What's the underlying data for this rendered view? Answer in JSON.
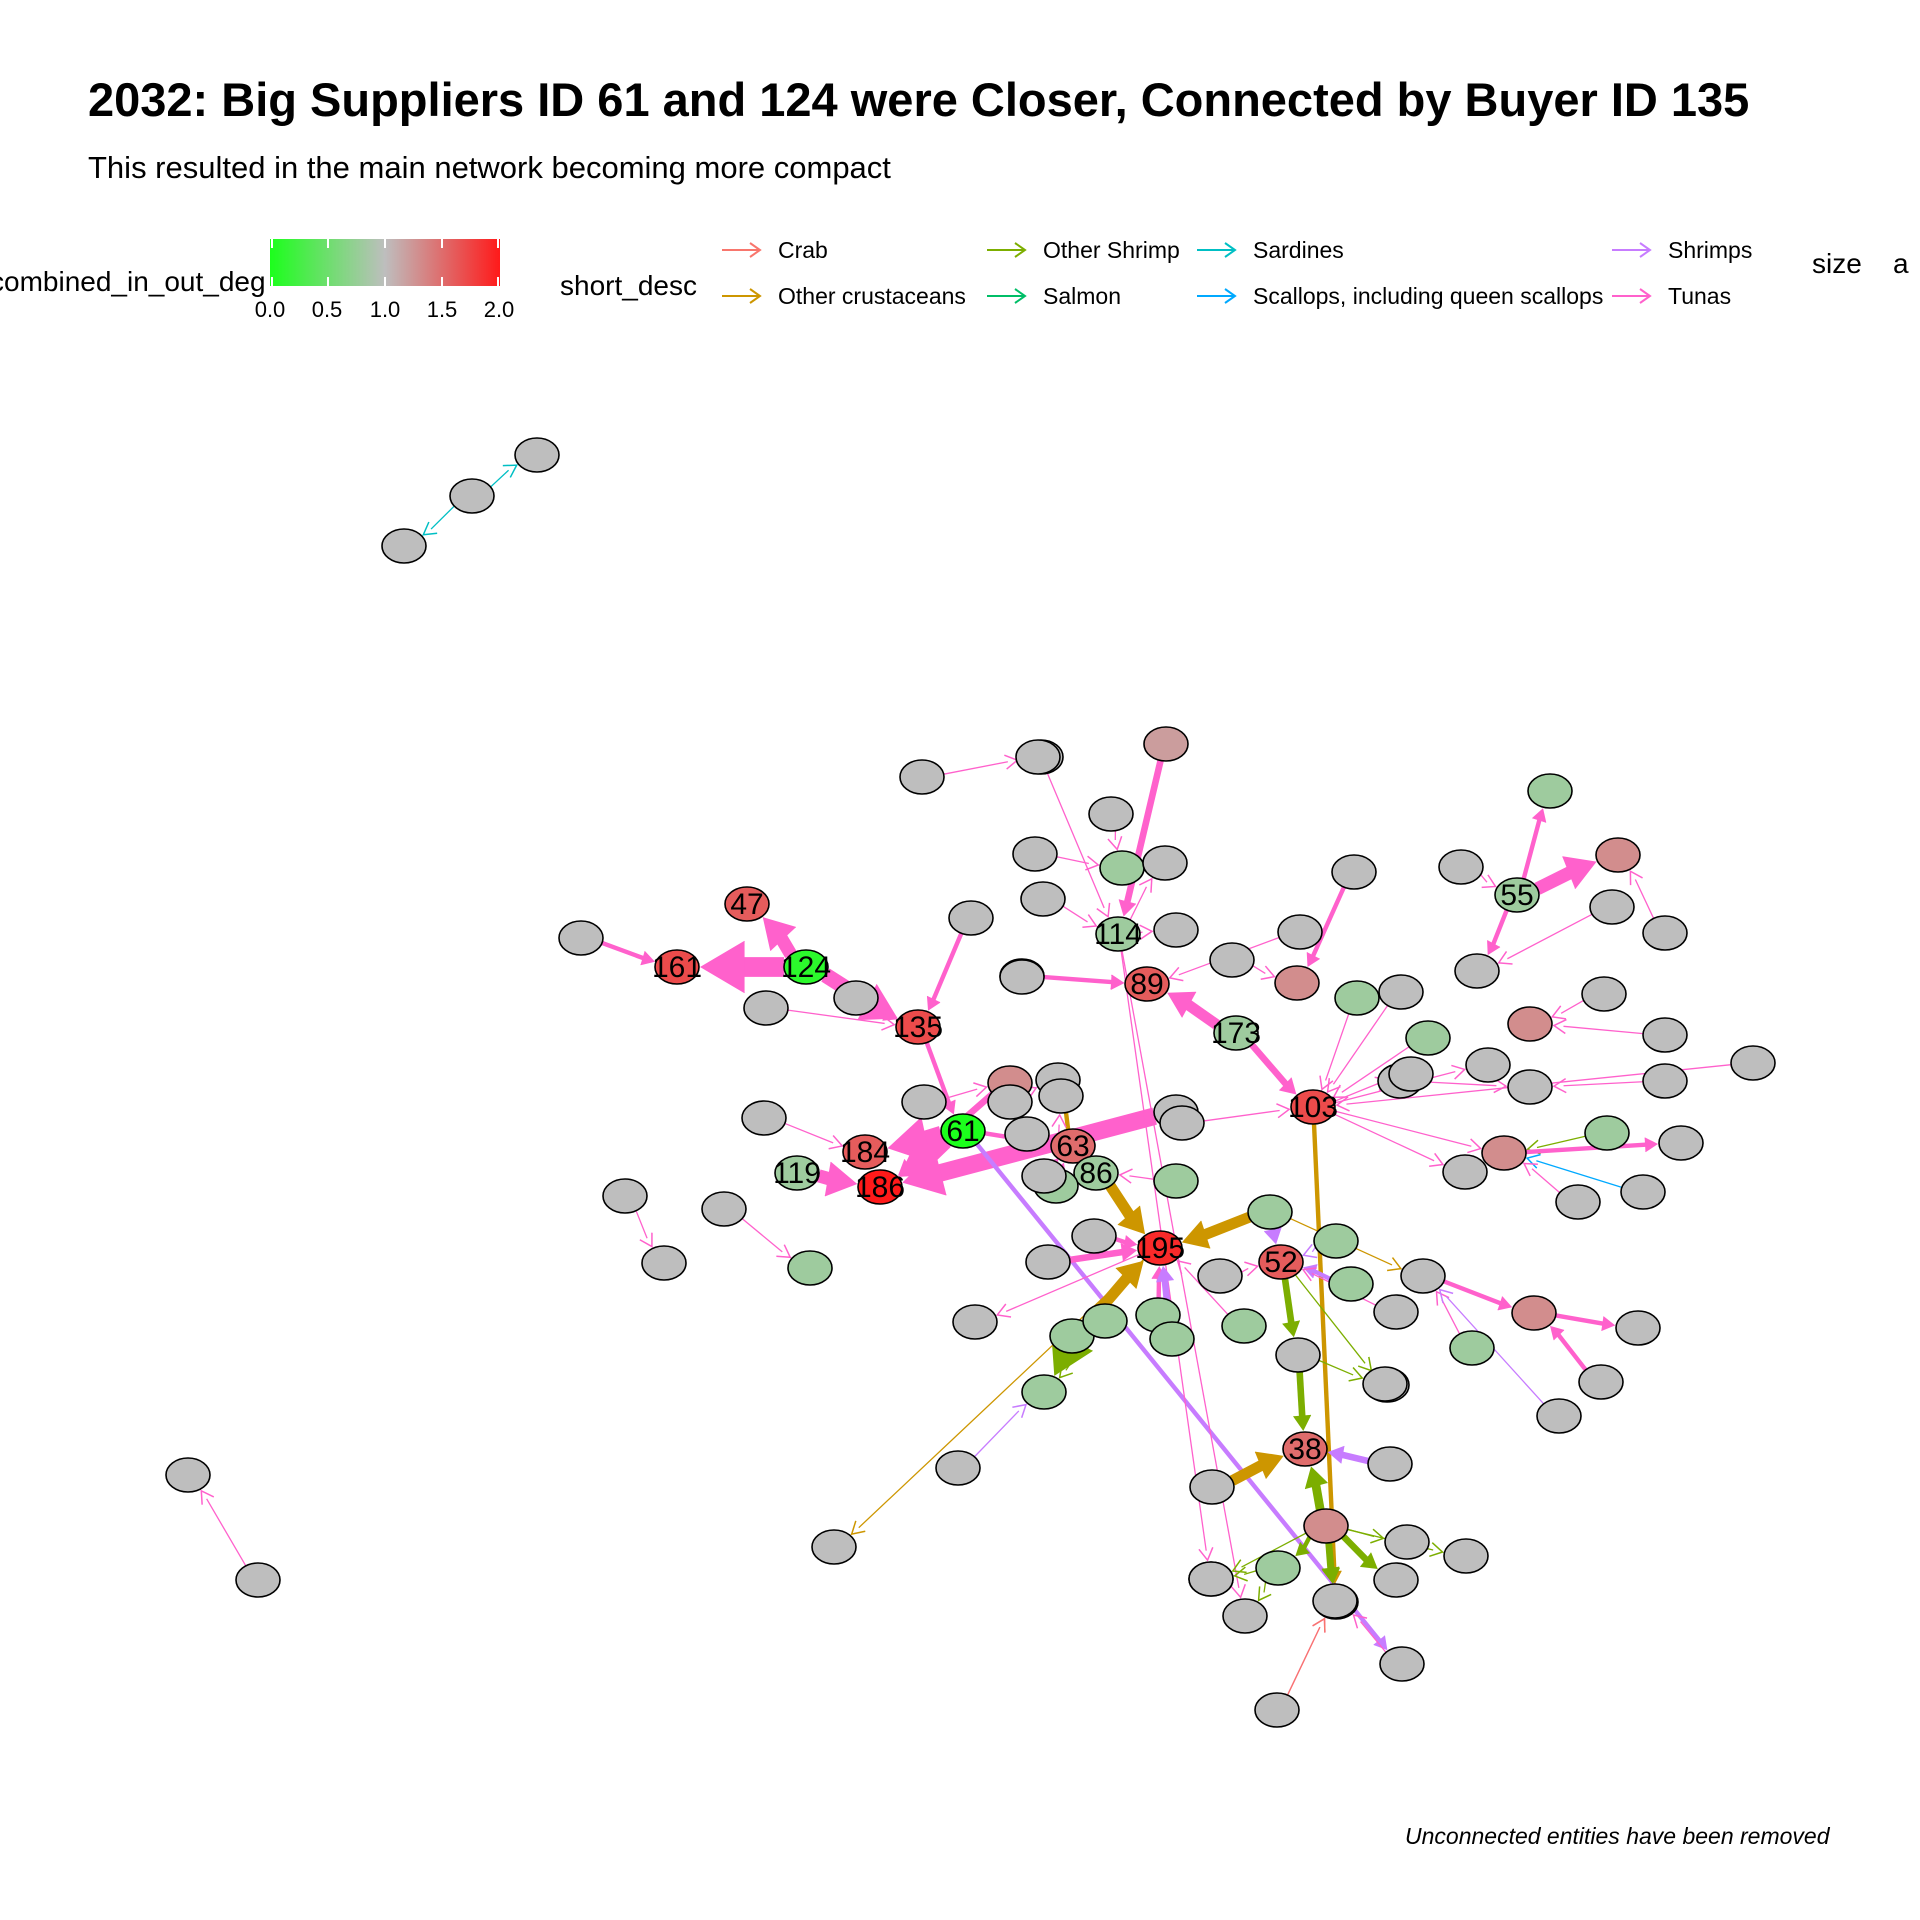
{
  "title": "2032: Big Suppliers ID 61 and 124 were Closer, Connected by Buyer ID 135",
  "subtitle": "This resulted in the main network becoming more compact",
  "caption": "Unconnected entities have been removed",
  "legend": {
    "color_title": "combined_in_out_deg",
    "color_ticks": [
      "0.0",
      "0.5",
      "1.0",
      "1.5",
      "2.0"
    ],
    "color_scale": {
      "low": "#1cff1c",
      "mid": "#bebebe",
      "high": "#ff1a1a"
    },
    "edge_title": "short_desc",
    "edge_items": [
      {
        "label": "Crab",
        "color": "#f8766d"
      },
      {
        "label": "Other crustaceans",
        "color": "#cd9600"
      },
      {
        "label": "Other Shrimp",
        "color": "#7cae00"
      },
      {
        "label": "Salmon",
        "color": "#00be67"
      },
      {
        "label": "Sardines",
        "color": "#00bfc4"
      },
      {
        "label": "Scallops, including queen scallops",
        "color": "#00a9ff"
      },
      {
        "label": "Shrimps",
        "color": "#c77cff"
      },
      {
        "label": "Tunas",
        "color": "#ff61cc"
      }
    ],
    "size_title": "size",
    "size_key": "a"
  },
  "nodes": [
    {
      "id": "47",
      "label": "47",
      "deg": 1.6
    },
    {
      "id": "161",
      "label": "161",
      "deg": 1.7
    },
    {
      "id": "124",
      "label": "124",
      "deg": 0.1
    },
    {
      "id": "135",
      "label": "135",
      "deg": 1.7
    },
    {
      "id": "61",
      "label": "61",
      "deg": 0.0
    },
    {
      "id": "184",
      "label": "184",
      "deg": 1.6
    },
    {
      "id": "119",
      "label": "119",
      "deg": 0.8
    },
    {
      "id": "186",
      "label": "186",
      "deg": 2.0
    },
    {
      "id": "114",
      "label": "114",
      "deg": 0.8
    },
    {
      "id": "89",
      "label": "89",
      "deg": 1.6
    },
    {
      "id": "173",
      "label": "173",
      "deg": 0.8
    },
    {
      "id": "55",
      "label": "55",
      "deg": 0.8
    },
    {
      "id": "103",
      "label": "103",
      "deg": 1.7
    },
    {
      "id": "63",
      "label": "63",
      "deg": 1.5
    },
    {
      "id": "86",
      "label": "86",
      "deg": 0.8
    },
    {
      "id": "195",
      "label": "195",
      "deg": 1.9
    },
    {
      "id": "52",
      "label": "52",
      "deg": 1.6
    },
    {
      "id": "38",
      "label": "38",
      "deg": 1.5
    },
    {
      "id": "u1",
      "label": "",
      "deg": 1.0
    },
    {
      "id": "u2",
      "label": "",
      "deg": 1.0
    },
    {
      "id": "u3",
      "label": "",
      "deg": 1.0
    },
    {
      "id": "u4",
      "label": "",
      "deg": 1.0
    },
    {
      "id": "u5",
      "label": "",
      "deg": 1.0
    },
    {
      "id": "a1",
      "label": "",
      "deg": 1.0
    },
    {
      "id": "a2",
      "label": "",
      "deg": 1.0
    },
    {
      "id": "a3",
      "label": "",
      "deg": 1.0
    },
    {
      "id": "a4",
      "label": "",
      "deg": 1.0
    },
    {
      "id": "a5",
      "label": "",
      "deg": 1.0
    },
    {
      "id": "a6",
      "label": "",
      "deg": 1.0
    },
    {
      "id": "a7",
      "label": "",
      "deg": 1.0
    },
    {
      "id": "a8",
      "label": "",
      "deg": 1.0
    },
    {
      "id": "a9",
      "label": "",
      "deg": 1.0
    },
    {
      "id": "a10",
      "label": "",
      "deg": 1.3
    },
    {
      "id": "a11",
      "label": "",
      "deg": 1.0
    },
    {
      "id": "a12",
      "label": "",
      "deg": 1.0
    },
    {
      "id": "a13",
      "label": "",
      "deg": 1.0
    },
    {
      "id": "a14",
      "label": "",
      "deg": 0.8
    },
    {
      "id": "a15",
      "label": "",
      "deg": 1.0
    },
    {
      "id": "a16",
      "label": "",
      "deg": 1.2
    },
    {
      "id": "a17",
      "label": "",
      "deg": 1.0
    },
    {
      "id": "a18",
      "label": "",
      "deg": 1.2
    },
    {
      "id": "a19",
      "label": "",
      "deg": 1.0
    },
    {
      "id": "a20",
      "label": "",
      "deg": 1.0
    },
    {
      "id": "a21",
      "label": "",
      "deg": 0.8
    },
    {
      "id": "a22",
      "label": "",
      "deg": 1.0
    },
    {
      "id": "a23",
      "label": "",
      "deg": 1.0
    },
    {
      "id": "a24",
      "label": "",
      "deg": 1.0
    },
    {
      "id": "a25",
      "label": "",
      "deg": 1.0
    },
    {
      "id": "a26",
      "label": "",
      "deg": 1.0
    },
    {
      "id": "a27",
      "label": "",
      "deg": 1.0
    },
    {
      "id": "a28",
      "label": "",
      "deg": 1.0
    },
    {
      "id": "a29",
      "label": "",
      "deg": 1.0
    },
    {
      "id": "a30",
      "label": "",
      "deg": 1.3
    },
    {
      "id": "a31",
      "label": "",
      "deg": 1.0
    },
    {
      "id": "a32",
      "label": "",
      "deg": 0.8
    },
    {
      "id": "a33",
      "label": "",
      "deg": 1.0
    },
    {
      "id": "a34",
      "label": "",
      "deg": 1.3
    },
    {
      "id": "a35",
      "label": "",
      "deg": 1.0
    },
    {
      "id": "a36",
      "label": "",
      "deg": 1.0
    },
    {
      "id": "a37",
      "label": "",
      "deg": 1.0
    },
    {
      "id": "a38",
      "label": "",
      "deg": 1.0
    },
    {
      "id": "a39",
      "label": "",
      "deg": 1.0
    },
    {
      "id": "a40",
      "label": "",
      "deg": 0.8
    },
    {
      "id": "a41",
      "label": "",
      "deg": 1.0
    },
    {
      "id": "a42",
      "label": "",
      "deg": 1.0
    },
    {
      "id": "a43",
      "label": "",
      "deg": 1.0
    },
    {
      "id": "a44",
      "label": "",
      "deg": 1.3
    },
    {
      "id": "a45",
      "label": "",
      "deg": 1.0
    },
    {
      "id": "a46",
      "label": "",
      "deg": 1.0
    },
    {
      "id": "a47",
      "label": "",
      "deg": 1.3
    },
    {
      "id": "a48",
      "label": "",
      "deg": 1.0
    },
    {
      "id": "a49",
      "label": "",
      "deg": 0.8
    },
    {
      "id": "a50",
      "label": "",
      "deg": 1.0
    },
    {
      "id": "a51",
      "label": "",
      "deg": 1.0
    },
    {
      "id": "a52",
      "label": "",
      "deg": 1.0
    },
    {
      "id": "a53",
      "label": "",
      "deg": 1.0
    },
    {
      "id": "a54",
      "label": "",
      "deg": 1.0
    },
    {
      "id": "a55",
      "label": "",
      "deg": 0.8
    },
    {
      "id": "a56",
      "label": "",
      "deg": 1.0
    },
    {
      "id": "a57",
      "label": "",
      "deg": 1.0
    },
    {
      "id": "a58",
      "label": "",
      "deg": 0.8
    },
    {
      "id": "a59",
      "label": "",
      "deg": 0.8
    },
    {
      "id": "a60",
      "label": "",
      "deg": 1.0
    },
    {
      "id": "a61",
      "label": "",
      "deg": 1.0
    },
    {
      "id": "a62",
      "label": "",
      "deg": 1.0
    },
    {
      "id": "a63",
      "label": "",
      "deg": 0.8
    },
    {
      "id": "a64",
      "label": "",
      "deg": 1.0
    },
    {
      "id": "a65",
      "label": "",
      "deg": 1.0
    },
    {
      "id": "a66",
      "label": "",
      "deg": 1.0
    },
    {
      "id": "a67",
      "label": "",
      "deg": 1.0
    },
    {
      "id": "a68",
      "label": "",
      "deg": 0.8
    },
    {
      "id": "a69",
      "label": "",
      "deg": 0.8
    },
    {
      "id": "a70",
      "label": "",
      "deg": 0.8
    },
    {
      "id": "a71",
      "label": "",
      "deg": 0.8
    },
    {
      "id": "a72",
      "label": "",
      "deg": 0.8
    },
    {
      "id": "a73",
      "label": "",
      "deg": 1.0
    },
    {
      "id": "a74",
      "label": "",
      "deg": 1.0
    },
    {
      "id": "a75",
      "label": "",
      "deg": 1.0
    },
    {
      "id": "a76",
      "label": "",
      "deg": 0.8
    },
    {
      "id": "a77",
      "label": "",
      "deg": 1.0
    },
    {
      "id": "a78",
      "label": "",
      "deg": 0.8
    },
    {
      "id": "a79",
      "label": "",
      "deg": 1.0
    },
    {
      "id": "a80",
      "label": "",
      "deg": 1.0
    },
    {
      "id": "a81",
      "label": "",
      "deg": 0.8
    },
    {
      "id": "a82",
      "label": "",
      "deg": 1.0
    },
    {
      "id": "a83",
      "label": "",
      "deg": 1.3
    },
    {
      "id": "a84",
      "label": "",
      "deg": 1.0
    },
    {
      "id": "a85",
      "label": "",
      "deg": 1.0
    },
    {
      "id": "a86",
      "label": "",
      "deg": 0.8
    },
    {
      "id": "a87",
      "label": "",
      "deg": 1.0
    },
    {
      "id": "a88",
      "label": "",
      "deg": 1.0
    },
    {
      "id": "a89",
      "label": "",
      "deg": 1.0
    },
    {
      "id": "a90",
      "label": "",
      "deg": 1.0
    },
    {
      "id": "a91",
      "label": "",
      "deg": 1.0
    },
    {
      "id": "a92",
      "label": "",
      "deg": 1.3
    },
    {
      "id": "a93",
      "label": "",
      "deg": 1.0
    },
    {
      "id": "a94",
      "label": "",
      "deg": 1.3
    },
    {
      "id": "a95",
      "label": "",
      "deg": 1.0
    },
    {
      "id": "a96",
      "label": "",
      "deg": 1.0
    },
    {
      "id": "a97",
      "label": "",
      "deg": 1.0
    },
    {
      "id": "a98",
      "label": "",
      "deg": 1.0
    },
    {
      "id": "a99",
      "label": "",
      "deg": 0.8
    }
  ],
  "edges": [
    {
      "from": "u2",
      "to": "u1",
      "type": "Sardines",
      "w": 1
    },
    {
      "from": "u2",
      "to": "u3",
      "type": "Sardines",
      "w": 1
    },
    {
      "from": "u5",
      "to": "u4",
      "type": "Tunas",
      "w": 1
    },
    {
      "from": "124",
      "to": "161",
      "type": "Tunas",
      "w": 9
    },
    {
      "from": "124",
      "to": "47",
      "type": "Tunas",
      "w": 6
    },
    {
      "from": "124",
      "to": "135",
      "type": "Tunas",
      "w": 7
    },
    {
      "from": "a1",
      "to": "161",
      "type": "Tunas",
      "w": 2
    },
    {
      "from": "a2",
      "to": "135",
      "type": "Tunas",
      "w": 1
    },
    {
      "from": "a3",
      "to": "135",
      "type": "Tunas",
      "w": 2
    },
    {
      "from": "a4",
      "to": "135",
      "type": "Tunas",
      "w": 2
    },
    {
      "from": "a5",
      "to": "89",
      "type": "Tunas",
      "w": 2
    },
    {
      "from": "135",
      "to": "61",
      "type": "Tunas",
      "w": 2
    },
    {
      "from": "61",
      "to": "184",
      "type": "Tunas",
      "w": 8
    },
    {
      "from": "61",
      "to": "186",
      "type": "Tunas",
      "w": 8
    },
    {
      "from": "61",
      "to": "63",
      "type": "Tunas",
      "w": 2
    },
    {
      "from": "a6",
      "to": "a7",
      "type": "Tunas",
      "w": 1
    },
    {
      "from": "a8",
      "to": "184",
      "type": "Tunas",
      "w": 1
    },
    {
      "from": "119",
      "to": "186",
      "type": "Tunas",
      "w": 6
    },
    {
      "from": "a9",
      "to": "186",
      "type": "Tunas",
      "w": 8
    },
    {
      "from": "a10",
      "to": "186",
      "type": "Tunas",
      "w": 3
    },
    {
      "from": "a11",
      "to": "a12",
      "type": "Tunas",
      "w": 1
    },
    {
      "from": "a13",
      "to": "a14",
      "type": "Tunas",
      "w": 1
    },
    {
      "from": "61",
      "to": "a15",
      "type": "Shrimps",
      "w": 2
    },
    {
      "from": "114",
      "to": "a16",
      "type": "Tunas",
      "w": 1
    },
    {
      "from": "a17",
      "to": "114",
      "type": "Tunas",
      "w": 1
    },
    {
      "from": "a18",
      "to": "114",
      "type": "Tunas",
      "w": 3
    },
    {
      "from": "114",
      "to": "a19",
      "type": "Tunas",
      "w": 1
    },
    {
      "from": "a20",
      "to": "a21",
      "type": "Tunas",
      "w": 1
    },
    {
      "from": "a22",
      "to": "a21",
      "type": "Tunas",
      "w": 1
    },
    {
      "from": "a23",
      "to": "114",
      "type": "Tunas",
      "w": 1
    },
    {
      "from": "114",
      "to": "a24",
      "type": "Tunas",
      "w": 1
    },
    {
      "from": "114",
      "to": "a25",
      "type": "Tunas",
      "w": 1
    },
    {
      "from": "a26",
      "to": "89",
      "type": "Tunas",
      "w": 1
    },
    {
      "from": "a27",
      "to": "a10",
      "type": "Tunas",
      "w": 1
    },
    {
      "from": "173",
      "to": "89",
      "type": "Tunas",
      "w": 5
    },
    {
      "from": "a28",
      "to": "a30",
      "type": "Tunas",
      "w": 1
    },
    {
      "from": "a29",
      "to": "89",
      "type": "Tunas",
      "w": 1
    },
    {
      "from": "a31",
      "to": "a30",
      "type": "Tunas",
      "w": 2
    },
    {
      "from": "55",
      "to": "a32",
      "type": "Tunas",
      "w": 2
    },
    {
      "from": "55",
      "to": "a33",
      "type": "Tunas",
      "w": 2
    },
    {
      "from": "55",
      "to": "a34",
      "type": "Tunas",
      "w": 6
    },
    {
      "from": "a35",
      "to": "55",
      "type": "Tunas",
      "w": 1
    },
    {
      "from": "a36",
      "to": "a33",
      "type": "Tunas",
      "w": 1
    },
    {
      "from": "a37",
      "to": "a34",
      "type": "Tunas",
      "w": 1
    },
    {
      "from": "a38",
      "to": "103",
      "type": "Tunas",
      "w": 1
    },
    {
      "from": "a39",
      "to": "a44",
      "type": "Tunas",
      "w": 1
    },
    {
      "from": "a40",
      "to": "103",
      "type": "Tunas",
      "w": 1
    },
    {
      "from": "a41",
      "to": "a44",
      "type": "Tunas",
      "w": 1
    },
    {
      "from": "a42",
      "to": "a45",
      "type": "Tunas",
      "w": 1
    },
    {
      "from": "a43",
      "to": "103",
      "type": "Tunas",
      "w": 1
    },
    {
      "from": "173",
      "to": "103",
      "type": "Tunas",
      "w": 3
    },
    {
      "from": "103",
      "to": "a47",
      "type": "Tunas",
      "w": 1
    },
    {
      "from": "103",
      "to": "a46",
      "type": "Tunas",
      "w": 1
    },
    {
      "from": "a48",
      "to": "a45",
      "type": "Tunas",
      "w": 1
    },
    {
      "from": "a49",
      "to": "a47",
      "type": "Other Shrimp",
      "w": 1
    },
    {
      "from": "a50",
      "to": "a47",
      "type": "Scallops, including queen scallops",
      "w": 1
    },
    {
      "from": "a47",
      "to": "a51",
      "type": "Tunas",
      "w": 2
    },
    {
      "from": "a52",
      "to": "a47",
      "type": "Tunas",
      "w": 1
    },
    {
      "from": "103",
      "to": "a53",
      "type": "Tunas",
      "w": 1
    },
    {
      "from": "103",
      "to": "a54",
      "type": "Tunas",
      "w": 1
    },
    {
      "from": "103",
      "to": "a94",
      "type": "Other crustaceans",
      "w": 2
    },
    {
      "from": "a55",
      "to": "103",
      "type": "Tunas",
      "w": 1
    },
    {
      "from": "a56",
      "to": "103",
      "type": "Tunas",
      "w": 1
    },
    {
      "from": "a57",
      "to": "a94",
      "type": "Tunas",
      "w": 1
    },
    {
      "from": "86",
      "to": "195",
      "type": "Other crustaceans",
      "w": 5
    },
    {
      "from": "63",
      "to": "a60",
      "type": "Other crustaceans",
      "w": 2
    },
    {
      "from": "a61",
      "to": "63",
      "type": "Tunas",
      "w": 1
    },
    {
      "from": "a62",
      "to": "63",
      "type": "Tunas",
      "w": 1
    },
    {
      "from": "a63",
      "to": "86",
      "type": "Tunas",
      "w": 1
    },
    {
      "from": "a59",
      "to": "63",
      "type": "Tunas",
      "w": 4
    },
    {
      "from": "a64",
      "to": "a60",
      "type": "Tunas",
      "w": 1
    },
    {
      "from": "a59",
      "to": "a65",
      "type": "Tunas",
      "w": 1
    },
    {
      "from": "a66",
      "to": "195",
      "type": "Tunas",
      "w": 3
    },
    {
      "from": "a67",
      "to": "195",
      "type": "Tunas",
      "w": 2
    },
    {
      "from": "a68",
      "to": "195",
      "type": "Tunas",
      "w": 2
    },
    {
      "from": "a69",
      "to": "195",
      "type": "Other crustaceans",
      "w": 5
    },
    {
      "from": "a70",
      "to": "195",
      "type": "Shrimps",
      "w": 3
    },
    {
      "from": "a69",
      "to": "a72",
      "type": "Other Shrimp",
      "w": 8
    },
    {
      "from": "a71",
      "to": "a72",
      "type": "Other Shrimp",
      "w": 1
    },
    {
      "from": "195",
      "to": "a73",
      "type": "Other crustaceans",
      "w": 1
    },
    {
      "from": "a74",
      "to": "a72",
      "type": "Shrimps",
      "w": 1
    },
    {
      "from": "195",
      "to": "a75",
      "type": "Tunas",
      "w": 1
    },
    {
      "from": "a76",
      "to": "195",
      "type": "Tunas",
      "w": 1
    },
    {
      "from": "a78",
      "to": "52",
      "type": "Shrimps",
      "w": 2
    },
    {
      "from": "a77",
      "to": "52",
      "type": "Tunas",
      "w": 1
    },
    {
      "from": "a79",
      "to": "52",
      "type": "Tunas",
      "w": 1
    },
    {
      "from": "a99",
      "to": "52",
      "type": "Shrimps",
      "w": 3
    },
    {
      "from": "a81",
      "to": "52",
      "type": "Shrimps",
      "w": 1
    },
    {
      "from": "52",
      "to": "a80",
      "type": "Other Shrimp",
      "w": 1
    },
    {
      "from": "a99",
      "to": "195",
      "type": "Other crustaceans",
      "w": 5
    },
    {
      "from": "a99",
      "to": "a82",
      "type": "Other crustaceans",
      "w": 1
    },
    {
      "from": "a82",
      "to": "a83",
      "type": "Tunas",
      "w": 2
    },
    {
      "from": "a83",
      "to": "a84",
      "type": "Tunas",
      "w": 2
    },
    {
      "from": "a85",
      "to": "a83",
      "type": "Tunas",
      "w": 2
    },
    {
      "from": "a86",
      "to": "a82",
      "type": "Tunas",
      "w": 1
    },
    {
      "from": "a87",
      "to": "a82",
      "type": "Shrimps",
      "w": 1
    },
    {
      "from": "52",
      "to": "a88",
      "type": "Other Shrimp",
      "w": 3
    },
    {
      "from": "a88",
      "to": "38",
      "type": "Other Shrimp",
      "w": 3
    },
    {
      "from": "a88",
      "to": "a89",
      "type": "Other Shrimp",
      "w": 1
    },
    {
      "from": "a90",
      "to": "38",
      "type": "Shrimps",
      "w": 3
    },
    {
      "from": "a91",
      "to": "38",
      "type": "Other crustaceans",
      "w": 5
    },
    {
      "from": "a92",
      "to": "38",
      "type": "Other Shrimp",
      "w": 4
    },
    {
      "from": "a92",
      "to": "a93",
      "type": "Other Shrimp",
      "w": 1
    },
    {
      "from": "a92",
      "to": "a95",
      "type": "Other Shrimp",
      "w": 1
    },
    {
      "from": "a92",
      "to": "a96",
      "type": "Other Shrimp",
      "w": 1
    },
    {
      "from": "a92",
      "to": "a97",
      "type": "Other Shrimp",
      "w": 3
    },
    {
      "from": "a92",
      "to": "a98",
      "type": "Other Shrimp",
      "w": 3
    },
    {
      "from": "a92",
      "to": "a58",
      "type": "Other Shrimp",
      "w": 2
    },
    {
      "from": "a58",
      "to": "a16",
      "type": "Other Shrimp",
      "w": 1
    },
    {
      "from": "a58",
      "to": "a19",
      "type": "Other Shrimp",
      "w": 1
    },
    {
      "from": "a92",
      "to": "a94",
      "type": "Other Shrimp",
      "w": 3
    },
    {
      "from": "a57",
      "to": "a94",
      "type": "Crab",
      "w": 1
    },
    {
      "from": "a15",
      "to": "a94",
      "type": "Tunas",
      "w": 1
    }
  ]
}
